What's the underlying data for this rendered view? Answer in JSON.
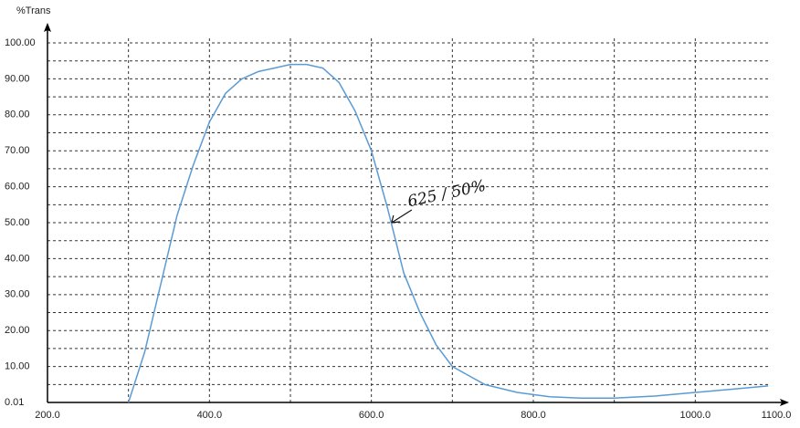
{
  "chart_data": {
    "type": "line",
    "y_label": "%Trans",
    "x": [
      300,
      320,
      340,
      360,
      380,
      400,
      420,
      440,
      460,
      480,
      500,
      520,
      540,
      560,
      580,
      600,
      620,
      640,
      660,
      680,
      700,
      740,
      780,
      820,
      860,
      900,
      950,
      1000,
      1050,
      1090
    ],
    "series": [
      {
        "name": "%Trans",
        "color": "#5b9bd5",
        "values": [
          0.01,
          14,
          33,
          52,
          66,
          78,
          86,
          90,
          92,
          93,
          94,
          94,
          93,
          89,
          81,
          70,
          54,
          36,
          25,
          16,
          10,
          5,
          2.8,
          1.6,
          1.2,
          1.2,
          1.8,
          2.8,
          3.8,
          4.6
        ]
      }
    ],
    "xlim": [
      200,
      1100
    ],
    "xticks": [
      {
        "value": 200,
        "label": "200.0"
      },
      {
        "value": 400,
        "label": "400.0"
      },
      {
        "value": 600,
        "label": "600.0"
      },
      {
        "value": 800,
        "label": "800.0"
      },
      {
        "value": 1000,
        "label": "1000.0"
      },
      {
        "value": 1100,
        "label": "1100.0"
      }
    ],
    "xgrid": [
      300,
      400,
      500,
      600,
      700,
      800,
      900,
      1000
    ],
    "ylim": [
      0.01,
      100
    ],
    "yticks": [
      {
        "value": 0.01,
        "label": "0.01"
      },
      {
        "value": 10,
        "label": "10.00"
      },
      {
        "value": 20,
        "label": "20.00"
      },
      {
        "value": 30,
        "label": "30.00"
      },
      {
        "value": 40,
        "label": "40.00"
      },
      {
        "value": 50,
        "label": "50.00"
      },
      {
        "value": 60,
        "label": "60.00"
      },
      {
        "value": 70,
        "label": "70.00"
      },
      {
        "value": 80,
        "label": "80.00"
      },
      {
        "value": 90,
        "label": "90.00"
      },
      {
        "value": 100,
        "label": "100.00"
      }
    ],
    "yminor": [
      5,
      15,
      25,
      35,
      45,
      55,
      65,
      75,
      85,
      95
    ],
    "grid": true,
    "annotation": {
      "text": "625 / 50%",
      "x": 625,
      "y": 50
    }
  }
}
